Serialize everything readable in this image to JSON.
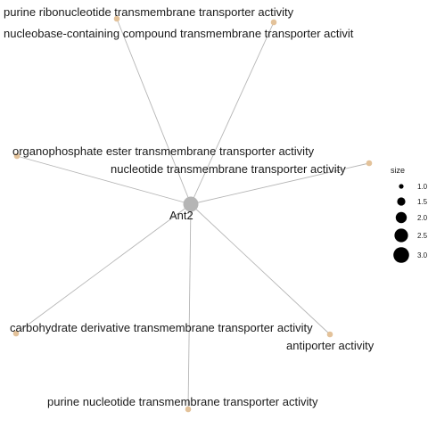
{
  "network": {
    "hub": {
      "label": "Ant2"
    },
    "terms": [
      {
        "id": "t1",
        "label": "purine ribonucleotide transmembrane transporter activity"
      },
      {
        "id": "t2",
        "label": "nucleobase-containing compound transmembrane transporter activit"
      },
      {
        "id": "t3",
        "label": "organophosphate ester transmembrane transporter activity"
      },
      {
        "id": "t4",
        "label": "nucleotide transmembrane transporter activity"
      },
      {
        "id": "t5",
        "label": "carbohydrate derivative transmembrane transporter activity"
      },
      {
        "id": "t6",
        "label": "antiporter activity"
      },
      {
        "id": "t7",
        "label": "purine nucleotide transmembrane transporter activity"
      }
    ],
    "colors": {
      "term_node": "#e3c29a",
      "hub_node": "#b5b5b5",
      "edge": "#b5b5b5"
    }
  },
  "legend": {
    "title": "size",
    "items": [
      "1.0",
      "1.5",
      "2.0",
      "2.5",
      "3.0"
    ]
  }
}
